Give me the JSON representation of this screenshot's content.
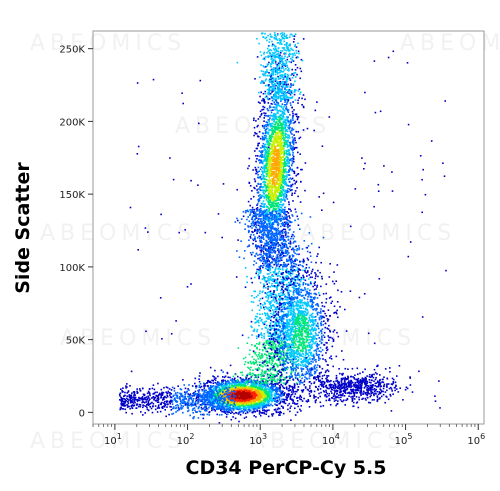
{
  "chart_data": {
    "type": "scatter",
    "subtype": "flow-cytometry density dot plot",
    "xlabel": "CD34 PerCP-Cy 5.5",
    "ylabel": "Side Scatter",
    "xscale": "log",
    "xlim": [
      5,
      1200000
    ],
    "ylim": [
      -8000,
      262144
    ],
    "x_ticks": [
      {
        "value": 10,
        "base": "10",
        "exp": "1"
      },
      {
        "value": 100,
        "base": "10",
        "exp": "2"
      },
      {
        "value": 1000,
        "base": "10",
        "exp": "3"
      },
      {
        "value": 10000,
        "base": "10",
        "exp": "4"
      },
      {
        "value": 100000,
        "base": "10",
        "exp": "5"
      },
      {
        "value": 1000000,
        "base": "10",
        "exp": "6"
      }
    ],
    "y_ticks": [
      {
        "value": 0,
        "label": "0"
      },
      {
        "value": 50000,
        "label": "50K"
      },
      {
        "value": 100000,
        "label": "100K"
      },
      {
        "value": 150000,
        "label": "150K"
      },
      {
        "value": 200000,
        "label": "200K"
      },
      {
        "value": 250000,
        "label": "250K"
      }
    ],
    "grid": false,
    "color_scale": [
      "#0000c8",
      "#0064ff",
      "#00c8ff",
      "#00e678",
      "#c8f000",
      "#ffaa00",
      "#ff2200",
      "#b40000"
    ],
    "populations": [
      {
        "x_center": 550,
        "y_center": 12000,
        "log_spread_x": 0.28,
        "spread_y": 5000,
        "density": "highest"
      },
      {
        "x_center": 1600,
        "y_center": 170000,
        "log_spread_x": 0.14,
        "spread_y": 28000,
        "density": "high"
      },
      {
        "x_center": 3500,
        "y_center": 50000,
        "log_spread_x": 0.2,
        "spread_y": 20000,
        "density": "medium"
      },
      {
        "x_center": 30000,
        "y_center": 18000,
        "log_spread_x": 0.35,
        "spread_y": 5000,
        "density": "low"
      }
    ],
    "watermark": "ABEOMICS"
  }
}
